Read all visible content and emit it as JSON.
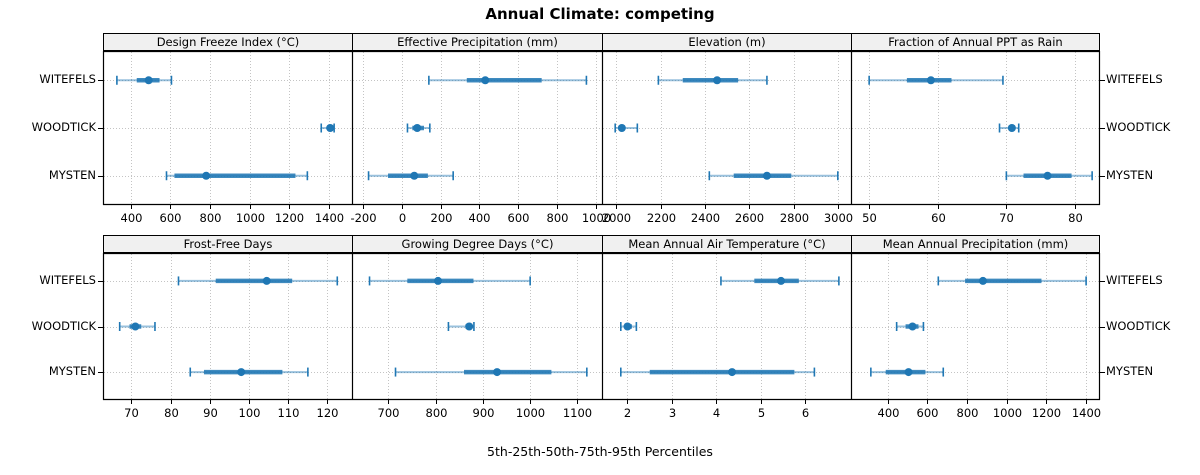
{
  "figure": {
    "title": "Annual Climate: competing",
    "caption": "5th-25th-50th-75th-95th Percentiles"
  },
  "categories": [
    "WITEFELS",
    "WOODTICK",
    "MYSTEN"
  ],
  "colors": {
    "point": "#1f77b4",
    "interval_thick": "#1f77b4",
    "interval_thin": "#8abbdb",
    "grid": "#c4c4c4",
    "strip_bg": "#f0f0f0",
    "border": "#000000"
  },
  "chart_data": {
    "type": "dotplot-interval",
    "title": "Annual Climate: competing",
    "xlabel": "5th-25th-50th-75th-95th Percentiles",
    "categories": [
      "WITEFELS",
      "WOODTICK",
      "MYSTEN"
    ],
    "percentiles": [
      5,
      25,
      50,
      75,
      95
    ],
    "grid": true,
    "layout": "2 rows x 4 cols",
    "legend_position": "none",
    "panels": [
      {
        "title": "Design Freeze Index (°C)",
        "xlim": [
          265,
          1510
        ],
        "ticks": [
          400,
          600,
          800,
          1000,
          1200,
          1400
        ],
        "series": [
          {
            "name": "WITEFELS",
            "values": [
              330,
              430,
              490,
              545,
              605
            ]
          },
          {
            "name": "WOODTICK",
            "values": [
              1360,
              1395,
              1405,
              1415,
              1425
            ]
          },
          {
            "name": "MYSTEN",
            "values": [
              580,
              620,
              780,
              1230,
              1290
            ]
          }
        ]
      },
      {
        "title": "Effective Precipitation (mm)",
        "xlim": [
          -250,
          1025
        ],
        "ticks": [
          -200,
          0,
          200,
          400,
          600,
          800,
          1000
        ],
        "series": [
          {
            "name": "WITEFELS",
            "values": [
              140,
              335,
              430,
              720,
              950
            ]
          },
          {
            "name": "WOODTICK",
            "values": [
              30,
              55,
              80,
              115,
              145
            ]
          },
          {
            "name": "MYSTEN",
            "values": [
              -170,
              -70,
              65,
              135,
              265
            ]
          }
        ]
      },
      {
        "title": "Elevation (m)",
        "xlim": [
          1940,
          3055
        ],
        "ticks": [
          2000,
          2200,
          2400,
          2600,
          2800,
          3000
        ],
        "series": [
          {
            "name": "WITEFELS",
            "values": [
              2190,
              2300,
              2455,
              2550,
              2680
            ]
          },
          {
            "name": "WOODTICK",
            "values": [
              1995,
              2010,
              2025,
              2040,
              2095
            ]
          },
          {
            "name": "MYSTEN",
            "values": [
              2420,
              2530,
              2680,
              2790,
              3000
            ]
          }
        ]
      },
      {
        "title": "Fraction of Annual PPT as Rain",
        "xlim": [
          47.5,
          83.5
        ],
        "ticks": [
          50,
          60,
          70,
          80
        ],
        "series": [
          {
            "name": "WITEFELS",
            "values": [
              50,
              55.5,
              59,
              62,
              69.5
            ]
          },
          {
            "name": "WOODTICK",
            "values": [
              69,
              70.3,
              70.8,
              71.3,
              71.8
            ]
          },
          {
            "name": "MYSTEN",
            "values": [
              70,
              72.5,
              76,
              79.5,
              82.5
            ]
          }
        ]
      },
      {
        "title": "Frost-Free Days",
        "xlim": [
          63,
          126
        ],
        "ticks": [
          70,
          80,
          90,
          100,
          110,
          120
        ],
        "series": [
          {
            "name": "WITEFELS",
            "values": [
              82,
              91.5,
              104.5,
              111,
              122.5
            ]
          },
          {
            "name": "WOODTICK",
            "values": [
              67,
              69.5,
              71,
              72.5,
              76
            ]
          },
          {
            "name": "MYSTEN",
            "values": [
              85,
              88.5,
              98,
              108.5,
              115
            ]
          }
        ]
      },
      {
        "title": "Growing Degree Days (°C)",
        "xlim": [
          625,
          1150
        ],
        "ticks": [
          700,
          800,
          900,
          1000,
          1100
        ],
        "series": [
          {
            "name": "WITEFELS",
            "values": [
              660,
              740,
              805,
              880,
              1000
            ]
          },
          {
            "name": "WOODTICK",
            "values": [
              827,
              863,
              871,
              877,
              881
            ]
          },
          {
            "name": "MYSTEN",
            "values": [
              715,
              860,
              930,
              1045,
              1120
            ]
          }
        ]
      },
      {
        "title": "Mean Annual Air Temperature (°C)",
        "xlim": [
          1.45,
          7.0
        ],
        "ticks": [
          2,
          3,
          4,
          5,
          6
        ],
        "series": [
          {
            "name": "WITEFELS",
            "values": [
              4.1,
              4.85,
              5.45,
              5.85,
              6.75
            ]
          },
          {
            "name": "WOODTICK",
            "values": [
              1.85,
              1.95,
              2.0,
              2.1,
              2.2
            ]
          },
          {
            "name": "MYSTEN",
            "values": [
              1.85,
              2.5,
              4.35,
              5.75,
              6.2
            ]
          }
        ]
      },
      {
        "title": "Mean Annual Precipitation (mm)",
        "xlim": [
          220,
          1465
        ],
        "ticks": [
          400,
          600,
          800,
          1000,
          1200,
          1400
        ],
        "series": [
          {
            "name": "WITEFELS",
            "values": [
              655,
              790,
              880,
              1175,
              1400
            ]
          },
          {
            "name": "WOODTICK",
            "values": [
              445,
              490,
              525,
              555,
              580
            ]
          },
          {
            "name": "MYSTEN",
            "values": [
              315,
              390,
              505,
              590,
              680
            ]
          }
        ]
      }
    ]
  }
}
